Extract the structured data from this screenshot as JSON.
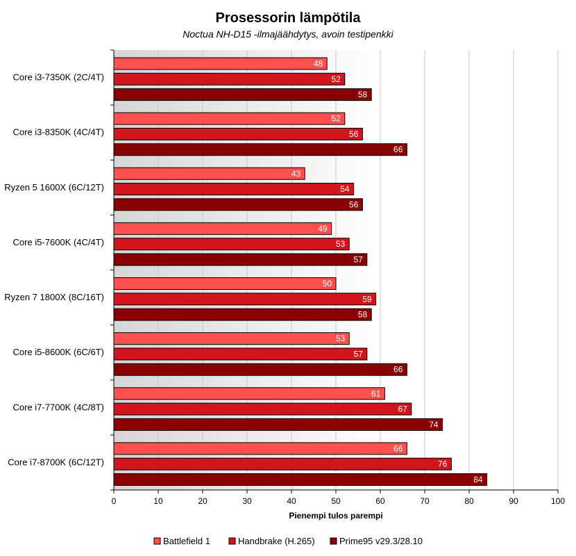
{
  "chart_data": {
    "type": "bar",
    "orientation": "horizontal",
    "title": "Prosessorin lämpötila",
    "subtitle": "Noctua NH-D15 -ilmajäähdytys, avoin testipenkki",
    "xlabel": "Pienempi tulos parempi",
    "ylabel": "",
    "xlim": [
      0,
      100
    ],
    "ticks": [
      "0",
      "10",
      "20",
      "30",
      "40",
      "50",
      "60",
      "70",
      "80",
      "90",
      "100"
    ],
    "grid": true,
    "legend_position": "bottom",
    "categories": [
      "Core i3-7350K (2C/4T)",
      "Core i3-8350K (4C/4T)",
      "Ryzen 5 1600X (6C/12T)",
      "Core i5-7600K (4C/4T)",
      "Ryzen 7 1800X (8C/16T)",
      "Core i5-8600K (6C/6T)",
      "Core i7-7700K (4C/8T)",
      "Core i7-8700K (6C/12T)"
    ],
    "series": [
      {
        "name": "Battlefield 1",
        "color": "#ff5050",
        "values": [
          48,
          52,
          43,
          49,
          50,
          53,
          61,
          66
        ]
      },
      {
        "name": "Handbrake (H.265)",
        "color": "#d0161c",
        "values": [
          52,
          56,
          54,
          53,
          59,
          57,
          67,
          76
        ]
      },
      {
        "name": "Prime95 v29.3/28.10",
        "color": "#8b0000",
        "values": [
          58,
          66,
          56,
          57,
          58,
          66,
          74,
          84
        ]
      }
    ]
  }
}
